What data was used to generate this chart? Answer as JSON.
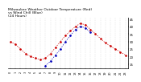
{
  "title": "Milwaukee Weather Outdoor Temperature (Red)\nvs Wind Chill (Blue)\n(24 Hours)",
  "title_fontsize": 3.2,
  "hours": [
    0,
    1,
    2,
    3,
    4,
    5,
    6,
    7,
    8,
    9,
    10,
    11,
    12,
    13,
    14,
    15,
    16,
    17,
    18,
    19,
    20,
    21,
    22,
    23
  ],
  "temp": [
    30,
    28,
    25,
    22,
    20,
    19,
    18,
    19,
    22,
    26,
    30,
    34,
    37,
    40,
    42,
    41,
    38,
    35,
    32,
    29,
    27,
    25,
    23,
    21
  ],
  "windchill": [
    null,
    null,
    null,
    null,
    null,
    null,
    null,
    14,
    17,
    21,
    25,
    30,
    34,
    38,
    40,
    39,
    36,
    null,
    null,
    null,
    null,
    null,
    null,
    null
  ],
  "ylim": [
    12,
    46
  ],
  "ytick_values": [
    15,
    20,
    25,
    30,
    35,
    40,
    45
  ],
  "ytick_labels": [
    "15",
    "20",
    "25",
    "30",
    "35",
    "40",
    "45"
  ],
  "temp_color": "#cc0000",
  "windchill_color": "#0000bb",
  "background_color": "#ffffff",
  "grid_color": "#999999",
  "plot_bgcolor": "#ffffff"
}
